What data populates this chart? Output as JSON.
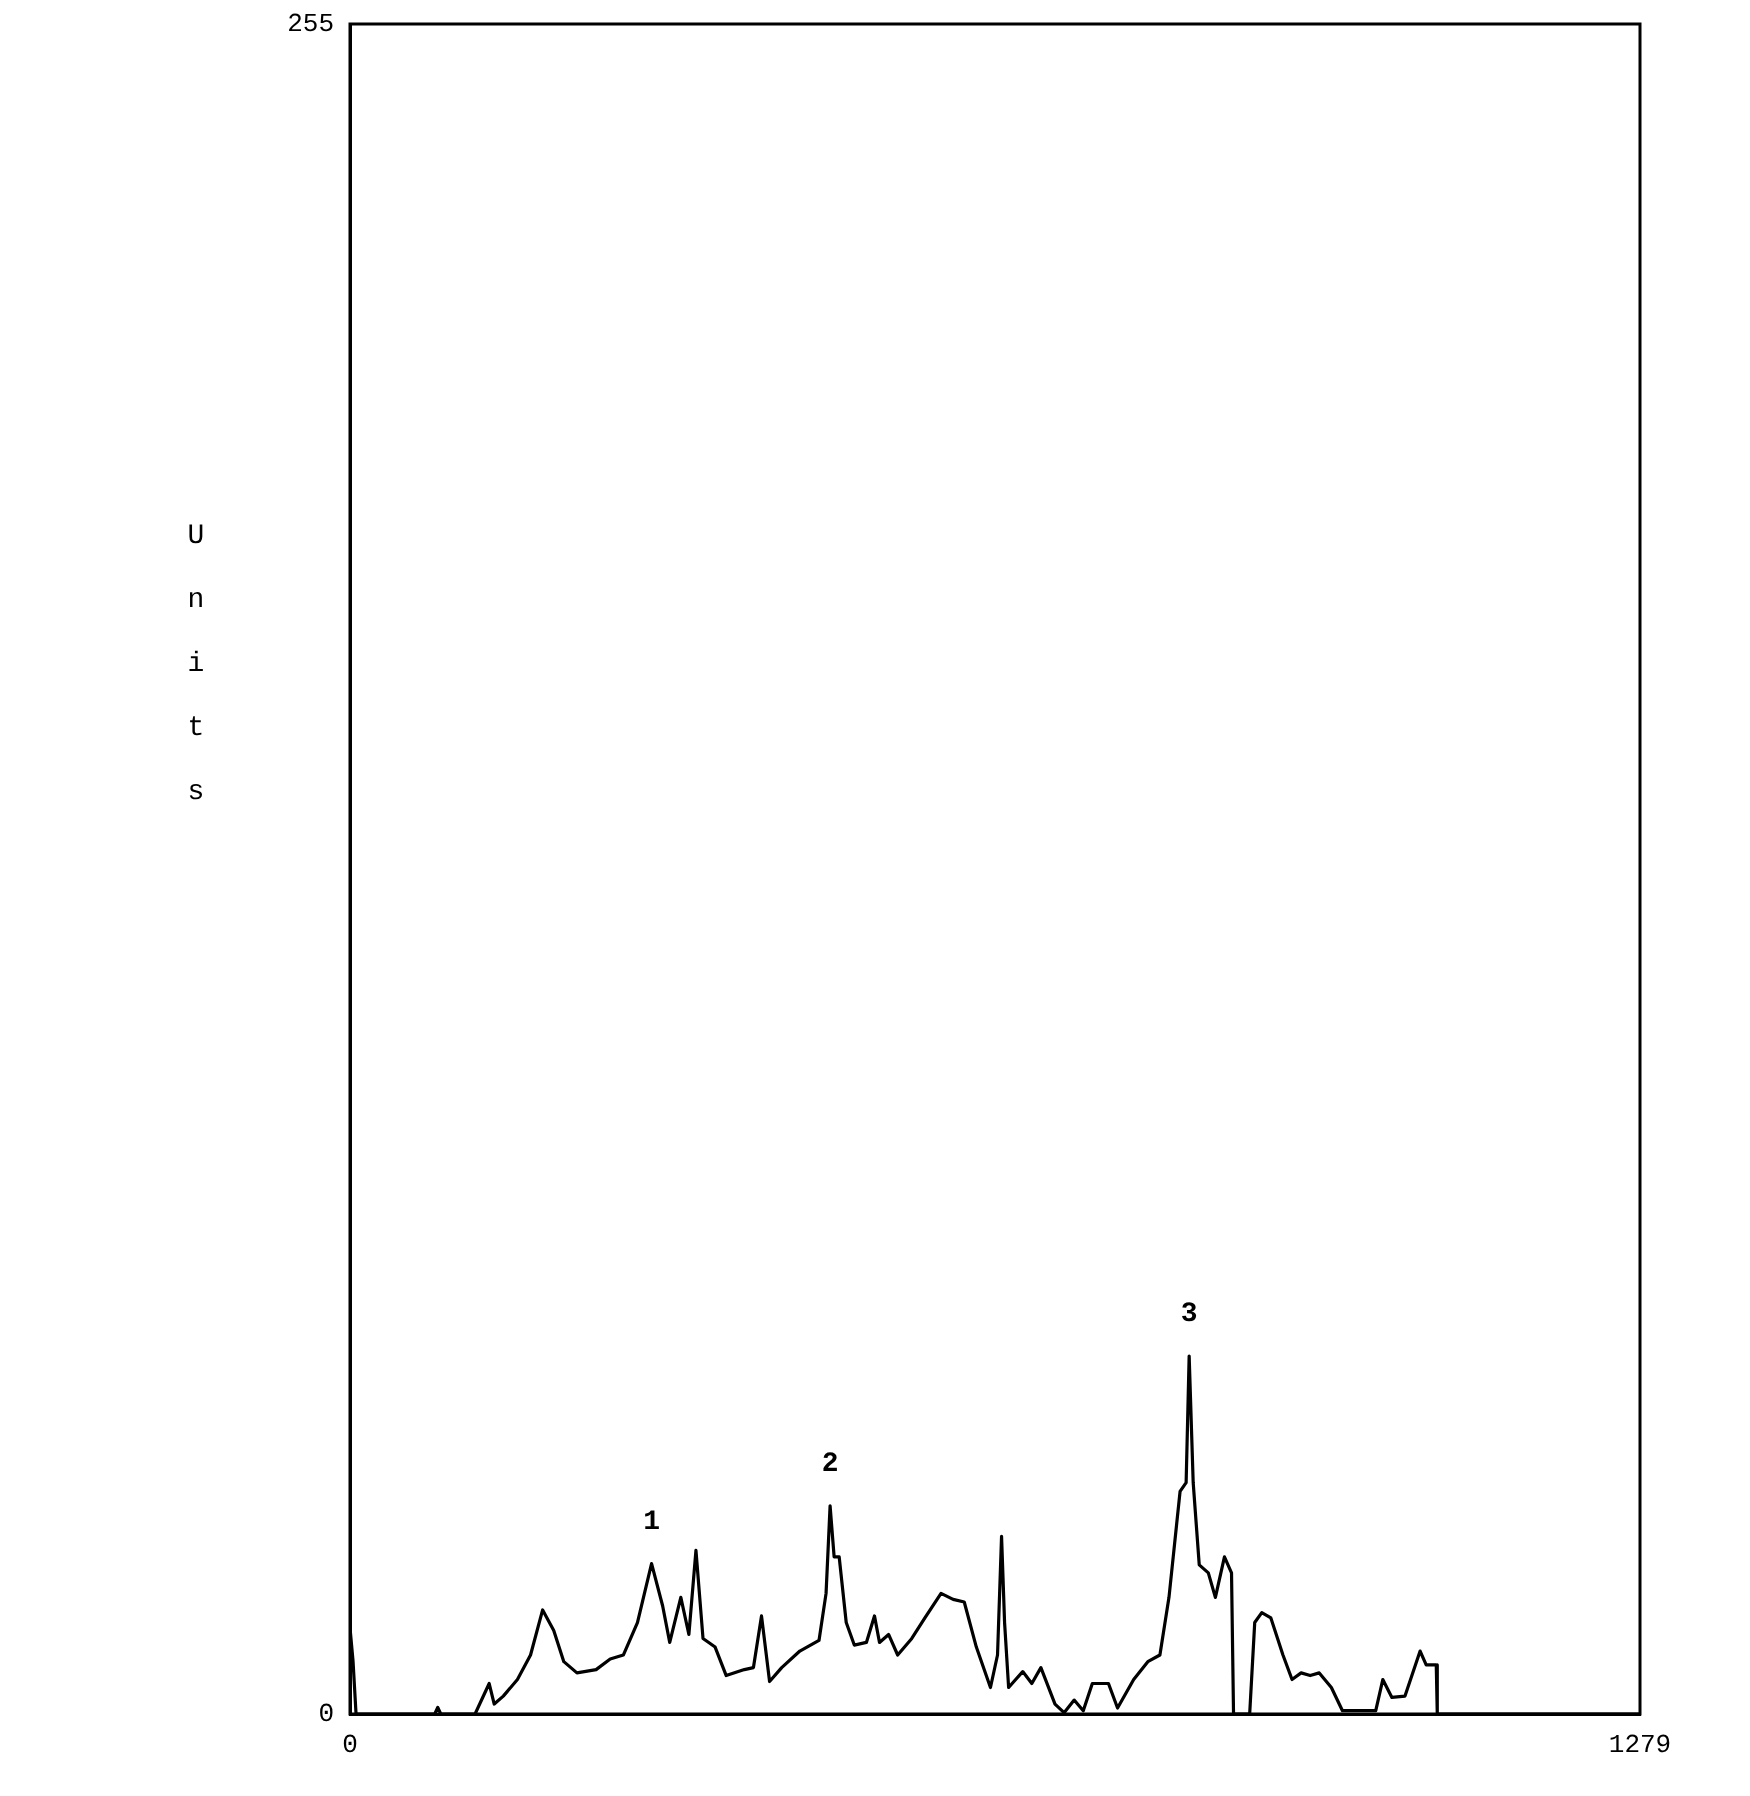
{
  "chart_data": {
    "type": "line",
    "ylabel": "Units",
    "color": "#000000",
    "grid": false,
    "legend": false,
    "marker": "none",
    "line_style": "solid",
    "xlim": [
      0,
      1279
    ],
    "ylim": [
      0,
      255
    ],
    "xticks": [
      0,
      1279
    ],
    "yticks": [
      0,
      255
    ],
    "x": [
      0,
      3,
      6,
      84,
      87,
      90,
      124,
      138,
      143,
      152,
      166,
      179,
      191,
      202,
      212,
      225,
      244,
      258,
      271,
      285,
      299,
      310,
      317,
      328,
      336,
      343,
      350,
      362,
      373,
      391,
      400,
      408,
      416,
      428,
      446,
      465,
      472,
      476,
      480,
      485,
      492,
      500,
      512,
      520,
      525,
      534,
      543,
      557,
      570,
      586,
      598,
      609,
      621,
      635,
      642,
      646,
      649,
      653,
      667,
      676,
      685,
      699,
      708,
      718,
      727,
      736,
      752,
      761,
      777,
      791,
      803,
      812,
      823,
      829,
      832,
      836,
      842,
      851,
      858,
      867,
      874,
      876,
      892,
      897,
      904,
      913,
      925,
      934,
      943,
      952,
      961,
      973,
      984,
      998,
      1017,
      1024,
      1033,
      1046,
      1061,
      1067,
      1077,
      1078,
      1279
    ],
    "values": [
      13,
      8,
      0,
      0,
      1,
      0,
      0,
      4.6,
      1.5,
      2.7,
      5.2,
      8.9,
      15.7,
      12.6,
      7.9,
      6.2,
      6.7,
      8.3,
      8.9,
      13.8,
      22.7,
      16.3,
      10.8,
      17.6,
      12,
      24.7,
      11.4,
      10.1,
      5.8,
      6.7,
      7,
      14.8,
      4.9,
      7,
      9.5,
      11.1,
      18.2,
      31.4,
      23.7,
      23.7,
      13.8,
      10.4,
      10.8,
      14.8,
      10.8,
      12,
      8.9,
      11.4,
      14.5,
      18.2,
      17.3,
      16.9,
      10.1,
      4,
      8.9,
      26.8,
      13.8,
      4,
      6.4,
      4.6,
      7,
      1.5,
      0.2,
      2.1,
      0.5,
      4.6,
      4.6,
      0.9,
      5.2,
      7.9,
      8.9,
      17.6,
      33.6,
      34.9,
      54,
      34.9,
      22.5,
      21.3,
      17.6,
      23.7,
      21.3,
      0,
      0,
      13.8,
      15.3,
      14.5,
      8.9,
      5.2,
      6.2,
      5.8,
      6.2,
      4,
      0.5,
      0.5,
      0.5,
      5.2,
      2.5,
      2.7,
      9.5,
      7.4,
      7.4,
      0,
      0
    ],
    "annotations": [
      {
        "text": "1",
        "x": 299,
        "y": 22.7
      },
      {
        "text": "2",
        "x": 476,
        "y": 31.4
      },
      {
        "text": "3",
        "x": 832,
        "y": 54
      }
    ]
  }
}
